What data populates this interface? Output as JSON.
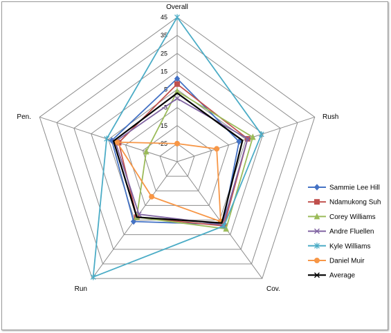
{
  "chart_data": {
    "type": "radar",
    "axes": [
      "Overall",
      "Rush",
      "Cov.",
      "Run",
      "Pen."
    ],
    "ticks": [
      "45",
      "35",
      "25",
      "15",
      "5",
      "-5",
      "-15",
      "-25"
    ],
    "rlim": [
      -35,
      45
    ],
    "grid": true,
    "legend_position": "right",
    "series": [
      {
        "name": "Sammie Lee Hill",
        "color": "#4472c4",
        "marker": "diamond",
        "values": [
          11,
          1,
          8,
          6,
          3
        ]
      },
      {
        "name": "Ndamukong Suh",
        "color": "#c0504d",
        "marker": "square",
        "values": [
          8,
          6,
          9,
          3,
          -1
        ]
      },
      {
        "name": "Corey Williams",
        "color": "#9bbb59",
        "marker": "triangle",
        "values": [
          4,
          9,
          11,
          3,
          -17
        ]
      },
      {
        "name": "Andre Fluellen",
        "color": "#8064a2",
        "marker": "x",
        "values": [
          0,
          6,
          8,
          1,
          1
        ]
      },
      {
        "name": "Kyle Williams",
        "color": "#4bacc6",
        "marker": "star",
        "values": [
          45,
          14,
          9,
          44,
          6
        ]
      },
      {
        "name": "Daniel Muir",
        "color": "#f79646",
        "marker": "circle",
        "values": [
          -25,
          -12,
          6,
          -11,
          0
        ]
      },
      {
        "name": "Average",
        "color": "#000000",
        "marker": "x",
        "values": [
          3,
          3,
          7,
          3,
          2
        ]
      }
    ]
  }
}
